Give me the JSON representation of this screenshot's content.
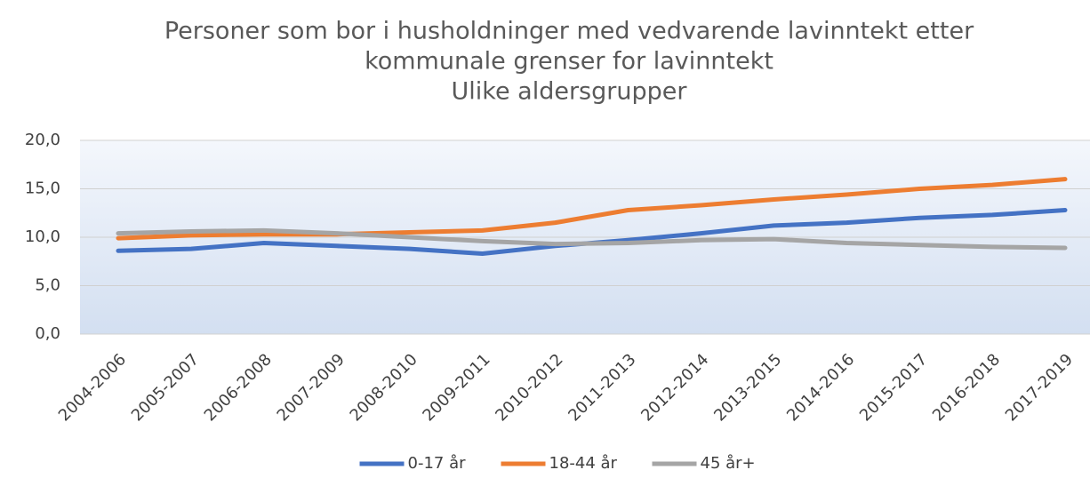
{
  "chart_data": {
    "type": "line",
    "title": [
      "Personer som bor i husholdninger med vedvarende lavinntekt etter",
      "kommunale grenser for lavinntekt"
    ],
    "subtitle": "Ulike aldersgrupper",
    "categories": [
      "2004-2006",
      "2005-2007",
      "2006-2008",
      "2007-2009",
      "2008-2010",
      "2009-2011",
      "2010-2012",
      "2011-2013",
      "2012-2014",
      "2013-2015",
      "2014-2016",
      "2015-2017",
      "2016-2018",
      "2017-2019"
    ],
    "series": [
      {
        "name": "0-17 år",
        "color": "#4472c4",
        "values": [
          8.6,
          8.8,
          9.4,
          9.1,
          8.8,
          8.3,
          9.1,
          9.7,
          10.4,
          11.2,
          11.5,
          12.0,
          12.3,
          12.8
        ]
      },
      {
        "name": "18-44 år",
        "color": "#ed7d31",
        "values": [
          9.9,
          10.2,
          10.3,
          10.3,
          10.5,
          10.7,
          11.5,
          12.8,
          13.3,
          13.9,
          14.4,
          15.0,
          15.4,
          16.0
        ]
      },
      {
        "name": "45 år+",
        "color": "#a5a5a5",
        "values": [
          10.4,
          10.6,
          10.7,
          10.4,
          10.0,
          9.6,
          9.3,
          9.4,
          9.7,
          9.8,
          9.4,
          9.2,
          9.0,
          8.9
        ]
      }
    ],
    "ylim": [
      0,
      20
    ],
    "yticks": [
      {
        "value": 0,
        "label": "0,0"
      },
      {
        "value": 5,
        "label": "5,0"
      },
      {
        "value": 10,
        "label": "10,0"
      },
      {
        "value": 15,
        "label": "15,0"
      },
      {
        "value": 20,
        "label": "20,0"
      }
    ],
    "grid": true,
    "legend": "bottom"
  }
}
